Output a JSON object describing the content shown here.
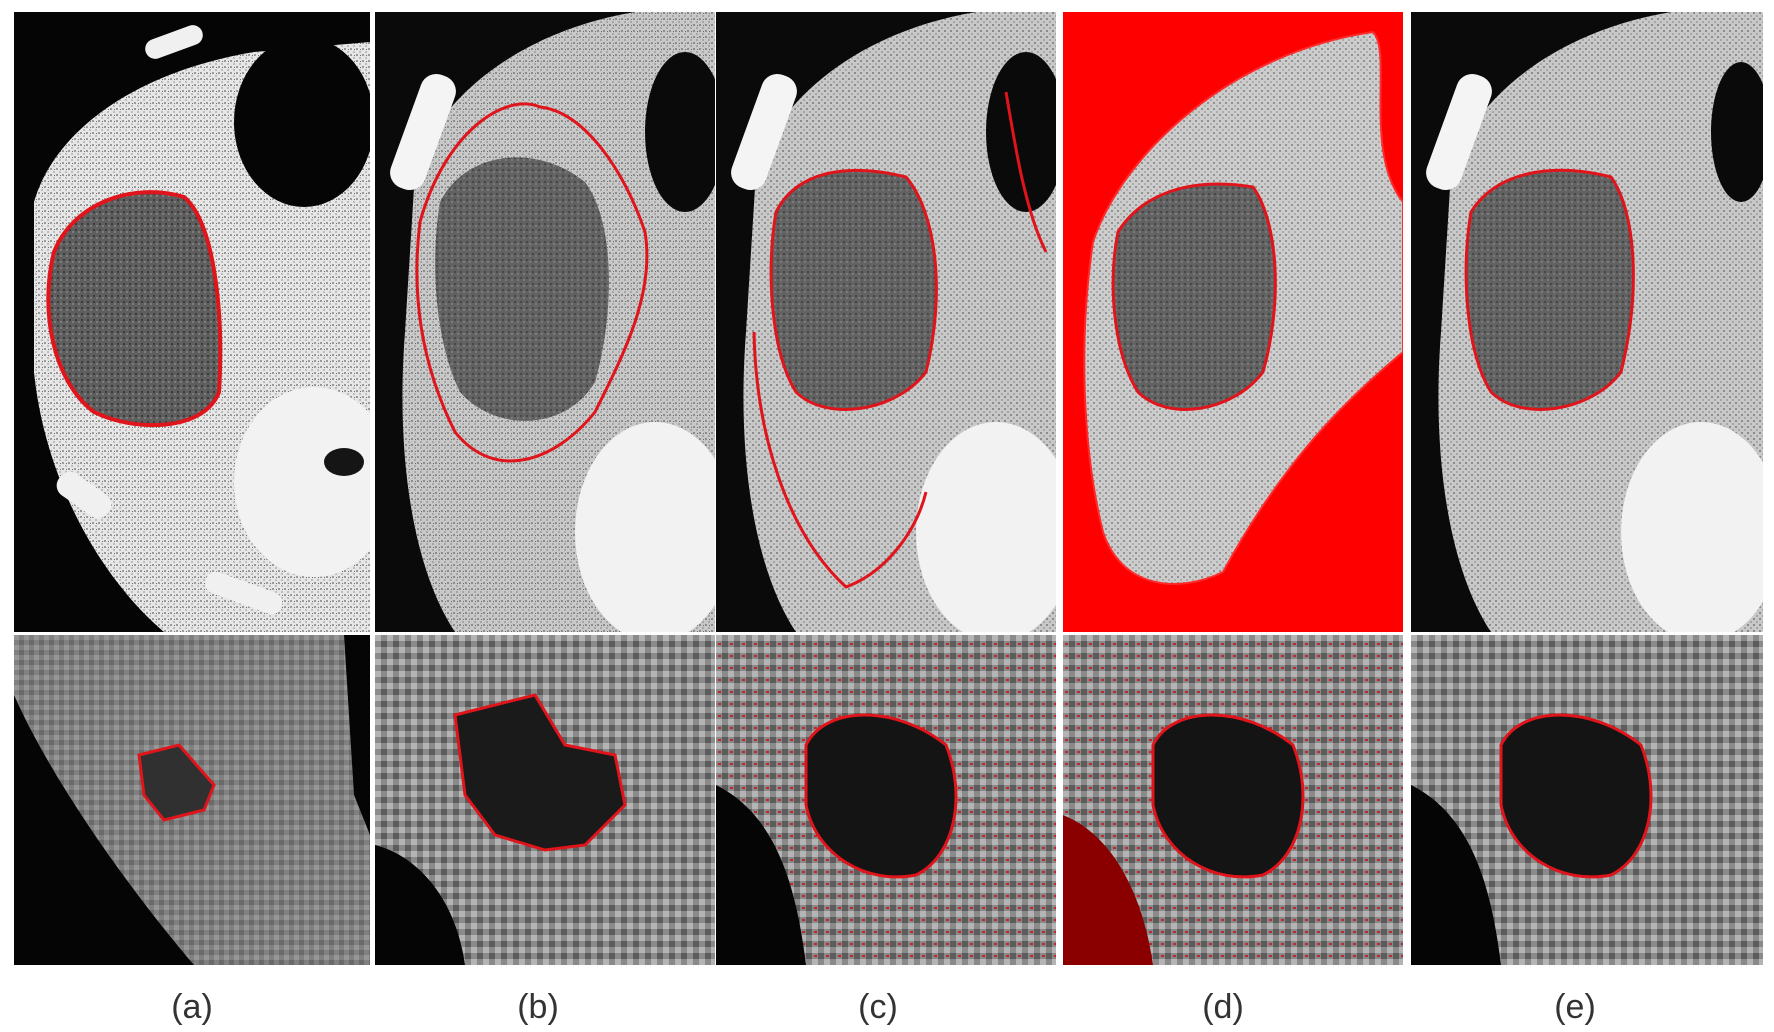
{
  "figure": {
    "panels": [
      {
        "caption": "(a)"
      },
      {
        "caption": "(b)"
      },
      {
        "caption": "(c)"
      },
      {
        "caption": "(d)"
      },
      {
        "caption": "(e)"
      }
    ]
  },
  "colors": {
    "background": "#ffffff",
    "tissue_light": "#d8d8d8",
    "tissue_mid": "#a0a0a0",
    "lesion_dark": "#5a5a5a",
    "contour_red": "#e0141b",
    "fill_red": "#ff0000",
    "dark_red": "#9a0000",
    "caption_text": "#333333"
  }
}
